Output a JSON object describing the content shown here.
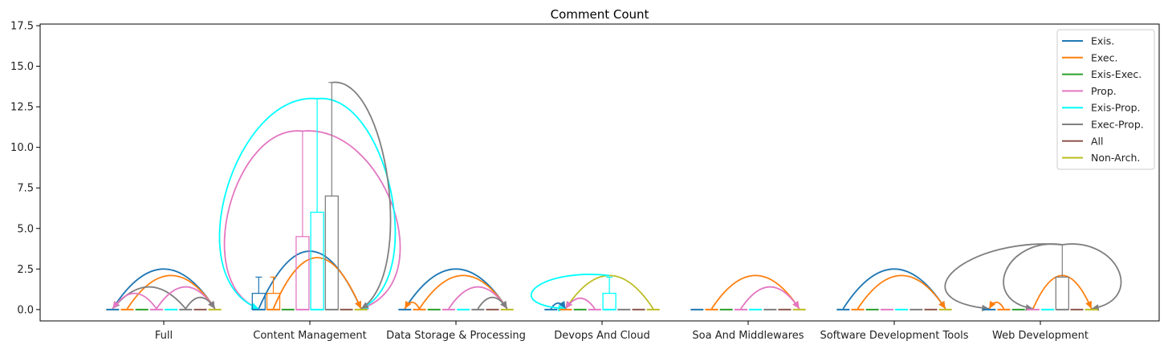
{
  "chart_data": {
    "type": "box-arc",
    "title": "Comment Count",
    "xlabel": "",
    "ylabel": "",
    "ylim": [
      -0.7,
      17.6
    ],
    "yticks": [
      0.0,
      2.5,
      5.0,
      7.5,
      10.0,
      12.5,
      15.0,
      17.5
    ],
    "ytick_labels": [
      "0.0",
      "2.5",
      "5.0",
      "7.5",
      "10.0",
      "12.5",
      "15.0",
      "17.5"
    ],
    "grid": false,
    "legend_position": "top-right",
    "categories": [
      "Full",
      "Content Management",
      "Data Storage & Processing",
      "Devops And Cloud",
      "Soa And Middlewares",
      "Software Development Tools",
      "Web Development"
    ],
    "series": [
      {
        "name": "Exis.",
        "color": "#1f77b4"
      },
      {
        "name": "Exec.",
        "color": "#ff7f0e"
      },
      {
        "name": "Exis-Exec.",
        "color": "#2ca02c"
      },
      {
        "name": "Prop.",
        "color": "#e377c2"
      },
      {
        "name": "Exis-Prop.",
        "color": "#00ffff"
      },
      {
        "name": "Exec-Prop.",
        "color": "#7f7f7f"
      },
      {
        "name": "All",
        "color": "#8c564b"
      },
      {
        "name": "Non-Arch.",
        "color": "#bcbd22"
      }
    ],
    "boxes": [
      {
        "category": 1,
        "series": 0,
        "q1": 0,
        "q3": 1,
        "median": 0,
        "whisker": 2
      },
      {
        "category": 1,
        "series": 1,
        "q1": 0,
        "q3": 1,
        "median": 0,
        "whisker": 2
      },
      {
        "category": 1,
        "series": 3,
        "q1": 0,
        "q3": 4.5,
        "median": 0,
        "whisker": 11
      },
      {
        "category": 1,
        "series": 4,
        "q1": 0,
        "q3": 6,
        "median": 0,
        "whisker": 13
      },
      {
        "category": 1,
        "series": 5,
        "q1": 0,
        "q3": 7,
        "median": 0,
        "whisker": 14
      },
      {
        "category": 3,
        "series": 4,
        "q1": 0,
        "q3": 1,
        "median": 0,
        "whisker": 2
      },
      {
        "category": 6,
        "series": 5,
        "q1": 0,
        "q3": 2,
        "median": 0,
        "whisker": 4
      }
    ],
    "arcs": [
      {
        "category": 0,
        "from": 0,
        "to": 7,
        "color": "#1f77b4",
        "peak": 2.5
      },
      {
        "category": 0,
        "from": 1,
        "to": 7,
        "color": "#ff7f0e",
        "peak": 2.1
      },
      {
        "category": 0,
        "from": 5,
        "to": 0,
        "color": "#7f7f7f",
        "peak": 1.4
      },
      {
        "category": 0,
        "from": 3,
        "to": 0,
        "color": "#e377c2",
        "peak": 1.0
      },
      {
        "category": 0,
        "from": 3,
        "to": 7,
        "color": "#e377c2",
        "peak": 1.4
      },
      {
        "category": 0,
        "from": 5,
        "to": 7,
        "color": "#7f7f7f",
        "peak": 0.75
      },
      {
        "category": 1,
        "from": 0,
        "to": 7,
        "color": "#1f77b4",
        "peak": 3.6
      },
      {
        "category": 1,
        "from": 1,
        "to": 7,
        "color": "#ff7f0e",
        "peak": 3.2
      },
      {
        "category": 2,
        "from": 0,
        "to": 7,
        "color": "#1f77b4",
        "peak": 2.5
      },
      {
        "category": 2,
        "from": 1,
        "to": 7,
        "color": "#ff7f0e",
        "peak": 2.1
      },
      {
        "category": 2,
        "from": 3,
        "to": 7,
        "color": "#e377c2",
        "peak": 1.4
      },
      {
        "category": 2,
        "from": 5,
        "to": 7,
        "color": "#7f7f7f",
        "peak": 0.75
      },
      {
        "category": 2,
        "from": 1,
        "to": 0,
        "color": "#ff7f0e",
        "peak": 0.45
      },
      {
        "category": 3,
        "from": 7,
        "to": 1,
        "color": "#bcbd22",
        "peak": 2.1
      },
      {
        "category": 3,
        "from": 3,
        "to": 1,
        "color": "#e377c2",
        "peak": 0.7
      },
      {
        "category": 3,
        "from": 0,
        "to": 1,
        "color": "#1f77b4",
        "peak": 0.4
      },
      {
        "category": 4,
        "from": 1,
        "to": 7,
        "color": "#ff7f0e",
        "peak": 2.1
      },
      {
        "category": 4,
        "from": 3,
        "to": 7,
        "color": "#e377c2",
        "peak": 1.4
      },
      {
        "category": 5,
        "from": 0,
        "to": 7,
        "color": "#1f77b4",
        "peak": 2.5
      },
      {
        "category": 5,
        "from": 1,
        "to": 7,
        "color": "#ff7f0e",
        "peak": 2.1
      },
      {
        "category": 6,
        "from": 3,
        "to": 7,
        "color": "#ff7f0e",
        "peak": 2.1
      },
      {
        "category": 6,
        "from": 1,
        "to": 0,
        "color": "#ff7f0e",
        "peak": 0.45
      }
    ],
    "loops": [
      {
        "category": 1,
        "series_from": 3,
        "to": 0,
        "top": 11,
        "color": "#e377c2",
        "bulge": "left"
      },
      {
        "category": 1,
        "series_from": 3,
        "to": 7,
        "top": 11,
        "color": "#e377c2",
        "bulge": "right"
      },
      {
        "category": 1,
        "series_from": 4,
        "to": 0,
        "top": 13,
        "color": "#00ffff",
        "bulge": "left"
      },
      {
        "category": 1,
        "series_from": 4,
        "to": 7,
        "top": 13,
        "color": "#00ffff",
        "bulge": "right"
      },
      {
        "category": 1,
        "series_from": 5,
        "to": 7,
        "top": 14,
        "color": "#7f7f7f",
        "bulge": "right"
      },
      {
        "category": 3,
        "series_from": 4,
        "to": 1,
        "top": 2.1,
        "color": "#00ffff",
        "bulge": "left"
      },
      {
        "category": 6,
        "series_from": 5,
        "to": 0,
        "top": 4,
        "color": "#7f7f7f",
        "bulge": "left"
      },
      {
        "category": 6,
        "series_from": 5,
        "to": 3,
        "top": 4,
        "color": "#7f7f7f",
        "bulge": "left"
      },
      {
        "category": 6,
        "series_from": 5,
        "to": 7,
        "top": 4,
        "color": "#7f7f7f",
        "bulge": "right"
      }
    ]
  }
}
